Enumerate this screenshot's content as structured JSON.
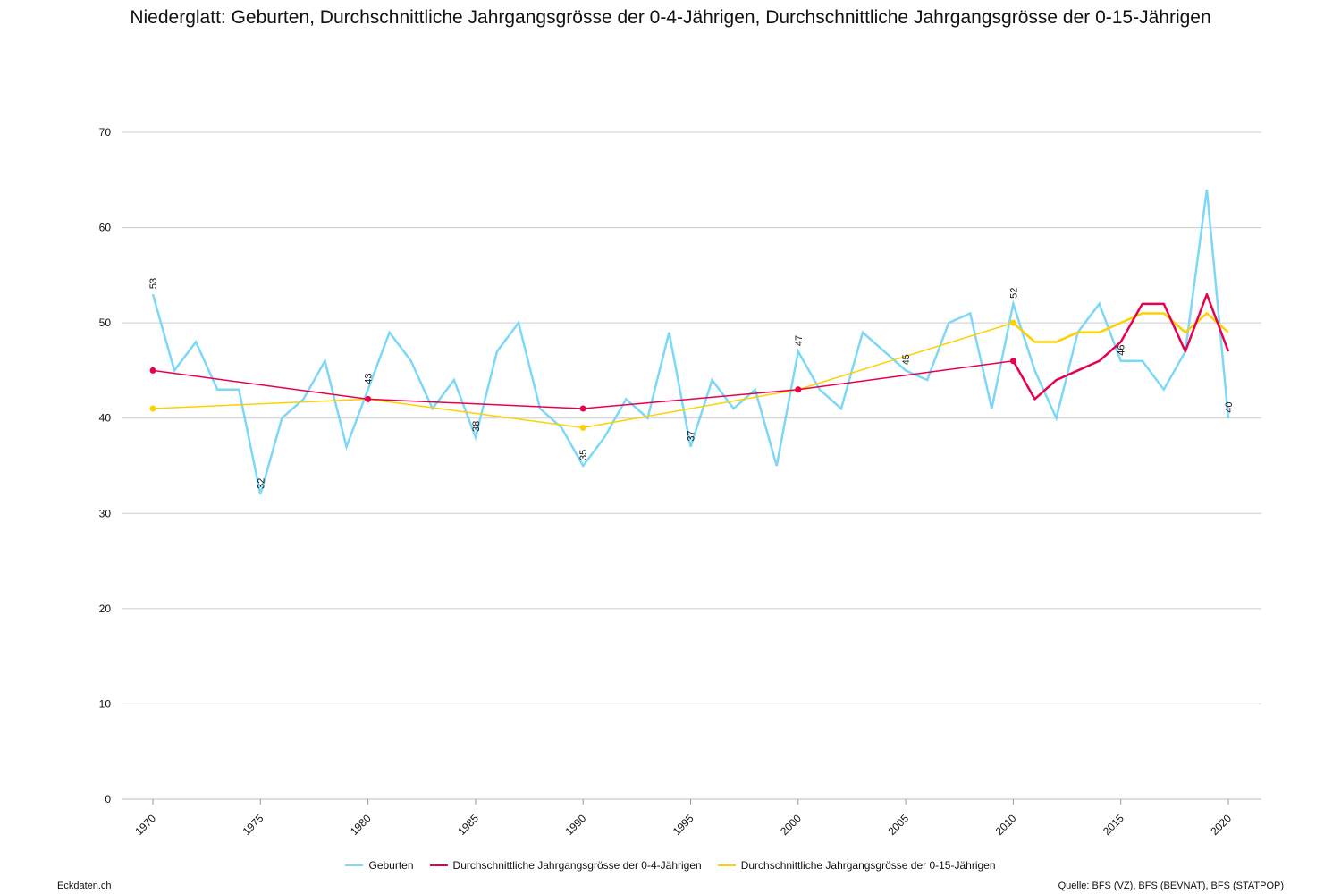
{
  "title": "Niederglatt: Geburten, Durchschnittliche Jahrgangsgrösse der 0-4-Jährigen, Durchschnittliche Jahrgangsgrösse der 0-15-Jährigen",
  "brand": "Eckdaten.ch",
  "source": "Quelle: BFS (VZ), BFS (BEVNAT), BFS (STATPOP)",
  "chart_data": {
    "type": "line",
    "title": "Niederglatt: Geburten, Durchschnittliche Jahrgangsgrösse der 0-4-Jährigen, Durchschnittliche Jahrgangsgrösse der 0-15-Jährigen",
    "xlim": [
      1970,
      2020
    ],
    "ylim": [
      0,
      70
    ],
    "x_ticks": [
      "1970",
      "1975",
      "1980",
      "1985",
      "1990",
      "1995",
      "2000",
      "2005",
      "2010",
      "2015",
      "2020"
    ],
    "y_ticks": [
      "0",
      "10",
      "20",
      "30",
      "40",
      "50",
      "60",
      "70"
    ],
    "grid": true,
    "legend": "bottom-center",
    "series": [
      {
        "name": "Geburten",
        "color": "#7dd8f8",
        "x": [
          1970,
          1971,
          1972,
          1973,
          1974,
          1975,
          1976,
          1977,
          1978,
          1979,
          1980,
          1981,
          1982,
          1983,
          1984,
          1985,
          1986,
          1987,
          1988,
          1989,
          1990,
          1991,
          1992,
          1993,
          1994,
          1995,
          1996,
          1997,
          1998,
          1999,
          2000,
          2001,
          2002,
          2003,
          2004,
          2005,
          2006,
          2007,
          2008,
          2009,
          2010,
          2011,
          2012,
          2013,
          2014,
          2015,
          2016,
          2017,
          2018,
          2019,
          2020
        ],
        "values": [
          53,
          45,
          48,
          43,
          43,
          32,
          40,
          42,
          46,
          37,
          43,
          49,
          46,
          41,
          44,
          38,
          47,
          50,
          41,
          39,
          35,
          38,
          42,
          40,
          49,
          37,
          44,
          41,
          43,
          35,
          47,
          43,
          41,
          49,
          47,
          45,
          44,
          50,
          51,
          41,
          52,
          45,
          40,
          49,
          52,
          46,
          46,
          43,
          47,
          64,
          40
        ],
        "labels": [
          {
            "x": 1970,
            "text": "53"
          },
          {
            "x": 1975,
            "text": "32"
          },
          {
            "x": 1980,
            "text": "43"
          },
          {
            "x": 1985,
            "text": "38"
          },
          {
            "x": 1990,
            "text": "35"
          },
          {
            "x": 1995,
            "text": "37"
          },
          {
            "x": 2000,
            "text": "47"
          },
          {
            "x": 2005,
            "text": "45"
          },
          {
            "x": 2010,
            "text": "52"
          },
          {
            "x": 2015,
            "text": "46"
          },
          {
            "x": 2020,
            "text": "40"
          }
        ]
      },
      {
        "name": "Durchschnittliche Jahrgangsgrösse der 0-4-Jährigen",
        "color": "#e8004f",
        "x": [
          1970,
          1980,
          1990,
          2000,
          2010,
          2011,
          2012,
          2013,
          2014,
          2015,
          2016,
          2017,
          2018,
          2019,
          2020
        ],
        "values": [
          45,
          42,
          41,
          43,
          46,
          42,
          44,
          45,
          46,
          48,
          52,
          52,
          47,
          53,
          47
        ]
      },
      {
        "name": "Durchschnittliche Jahrgangsgrösse der 0-15-Jährigen",
        "color": "#ffd000",
        "x": [
          1970,
          1980,
          1990,
          2000,
          2010,
          2011,
          2012,
          2013,
          2014,
          2015,
          2016,
          2017,
          2018,
          2019,
          2020
        ],
        "values": [
          41,
          42,
          39,
          43,
          50,
          48,
          48,
          49,
          49,
          50,
          51,
          51,
          49,
          51,
          49
        ]
      }
    ]
  }
}
